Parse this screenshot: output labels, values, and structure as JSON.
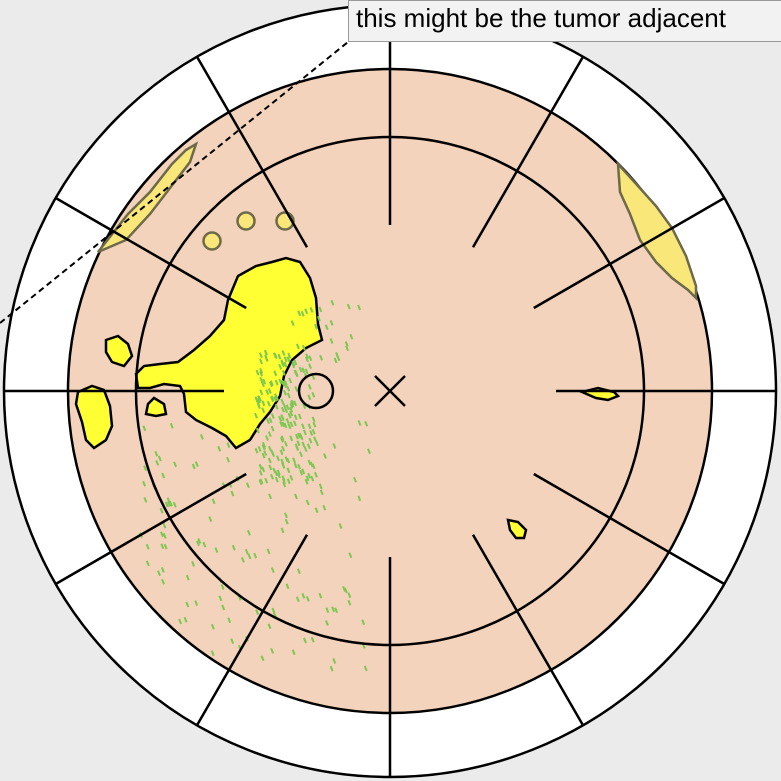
{
  "annotation": {
    "text": "this might be the tumor adjacent"
  },
  "colors": {
    "background": "#ebebeb",
    "outer_ring": "#ffffff",
    "tissue": "#f3d3bb",
    "tumor_region": "#ffff33",
    "tumor_outline": "#000000",
    "faded_region": "#f9e77a",
    "faded_outline": "#6d6a4a",
    "cell_markers": "#7cc850",
    "annotation_box": "#f2f2f2"
  },
  "icons": {
    "center_marker": "x-cross-icon",
    "focus_marker": "circle-icon"
  }
}
